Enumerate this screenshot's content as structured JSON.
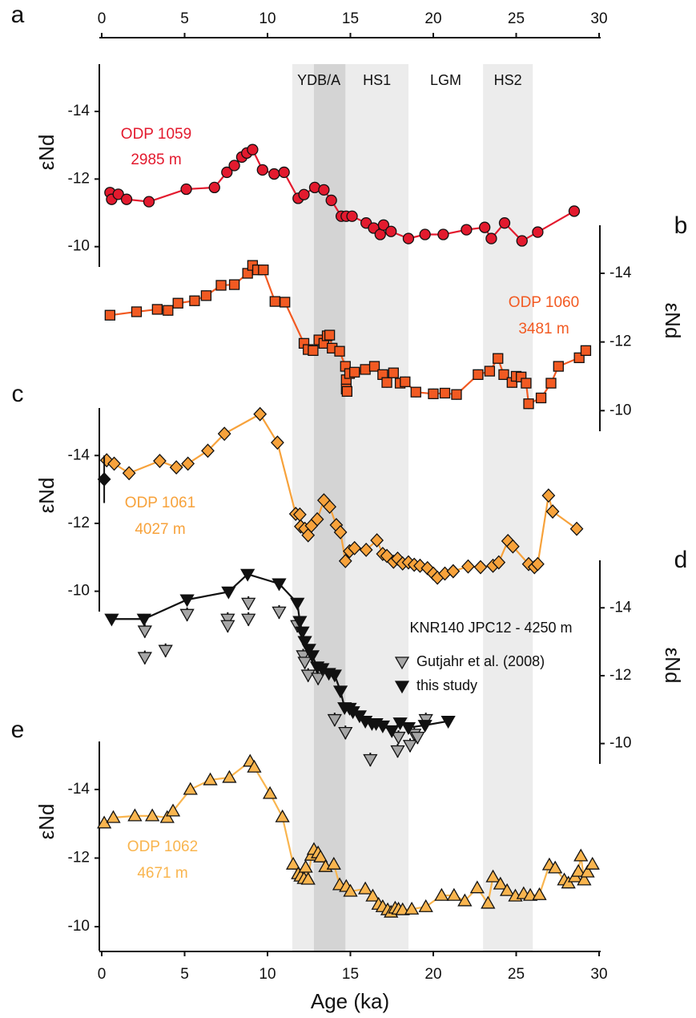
{
  "chart_data": [
    {
      "type": "line",
      "panel_label": "a",
      "ylabel": "εNd",
      "yaxis": "left",
      "ylim": [
        -9.4,
        -15.4
      ],
      "yticks": [
        -14,
        -12,
        -10
      ],
      "xlim": [
        0,
        30
      ],
      "xticks": [
        0,
        5,
        10,
        15,
        20,
        25,
        30
      ],
      "periods": [
        {
          "label": "YDB/A",
          "range": [
            11.5,
            14.7
          ],
          "shade": "#ececec"
        },
        {
          "label": "HS1",
          "range": [
            14.7,
            18.5
          ],
          "shade": "#ececec"
        },
        {
          "label": "LGM",
          "range": [
            18.5,
            23
          ],
          "shade": null
        },
        {
          "label": "HS2",
          "range": [
            23,
            26
          ],
          "shade": "#ececec"
        }
      ],
      "band": {
        "range": [
          12.8,
          14.7
        ],
        "color": "#d4d4d4"
      },
      "annotations": [
        "ODP 1059",
        "2985 m"
      ],
      "series": [
        {
          "color": "#e31a2e",
          "marker": "circle",
          "line": true,
          "error": 0.15,
          "x": [
            0.5,
            0.6,
            1.0,
            1.5,
            2.85,
            5.1,
            6.8,
            7.55,
            8.0,
            8.45,
            8.75,
            9.1,
            9.7,
            10.4,
            11.0,
            11.85,
            12.2,
            12.85,
            13.4,
            13.85,
            14.45,
            14.75,
            15.1,
            15.95,
            16.4,
            16.8,
            17.0,
            17.45,
            18.5,
            19.5,
            20.6,
            22.0,
            23.1,
            23.5,
            24.3,
            25.35,
            26.3,
            28.5
          ],
          "values": [
            -11.6,
            -11.4,
            -11.55,
            -11.4,
            -11.33,
            -11.7,
            -11.75,
            -12.2,
            -12.4,
            -12.65,
            -12.77,
            -12.87,
            -12.27,
            -12.15,
            -12.2,
            -11.43,
            -11.54,
            -11.75,
            -11.68,
            -11.37,
            -10.9,
            -10.9,
            -10.9,
            -10.7,
            -10.55,
            -10.36,
            -10.64,
            -10.45,
            -10.24,
            -10.36,
            -10.36,
            -10.5,
            -10.57,
            -10.24,
            -10.7,
            -10.17,
            -10.43,
            -11.05
          ]
        }
      ]
    },
    {
      "type": "line",
      "panel_label": "b",
      "ylabel": "εNd",
      "yaxis": "right",
      "ylim": [
        -9.4,
        -15.4
      ],
      "yticks": [
        -14,
        -12,
        -10
      ],
      "annotations": [
        "ODP 1060",
        "3481 m"
      ],
      "series": [
        {
          "color": "#f25a22",
          "marker": "square",
          "line": true,
          "error": 0.15,
          "x": [
            0.5,
            2.1,
            3.35,
            4.0,
            4.6,
            5.6,
            6.3,
            7.2,
            8.0,
            8.8,
            9.1,
            9.4,
            9.75,
            10.45,
            11.05,
            12.2,
            12.45,
            12.75,
            13.1,
            13.4,
            13.6,
            13.75,
            13.9,
            14.35,
            14.7,
            14.75,
            14.75,
            14.8,
            14.95,
            15.25,
            15.9,
            16.45,
            16.95,
            17.2,
            17.6,
            18.0,
            18.3,
            18.95,
            20.0,
            20.7,
            21.4,
            22.7,
            23.4,
            23.9,
            24.25,
            24.75,
            25.0,
            25.3,
            25.6,
            25.75,
            26.5,
            27.1,
            27.55,
            28.8,
            29.2
          ],
          "values": [
            -12.78,
            -12.88,
            -12.95,
            -12.92,
            -13.13,
            -13.2,
            -13.35,
            -13.65,
            -13.67,
            -14.0,
            -14.23,
            -14.1,
            -14.1,
            -13.18,
            -13.16,
            -11.96,
            -11.78,
            -11.75,
            -12.06,
            -11.96,
            -12.18,
            -12.2,
            -11.82,
            -11.73,
            -11.29,
            -10.9,
            -10.63,
            -10.56,
            -11.08,
            -11.12,
            -11.2,
            -11.29,
            -11.05,
            -10.82,
            -11.1,
            -10.8,
            -10.84,
            -10.54,
            -10.49,
            -10.51,
            -10.47,
            -11.05,
            -11.15,
            -11.52,
            -11.05,
            -10.82,
            -11.0,
            -10.98,
            -10.8,
            -10.2,
            -10.37,
            -10.8,
            -11.29,
            -11.54,
            -11.75
          ]
        }
      ]
    },
    {
      "type": "line",
      "panel_label": "c",
      "ylabel": "εNd",
      "yaxis": "left",
      "ylim": [
        -9.4,
        -15.4
      ],
      "yticks": [
        -14,
        -12,
        -10
      ],
      "annotations": [
        "ODP 1061",
        "4027 m"
      ],
      "series": [
        {
          "color": "#f7a23b",
          "marker": "diamond",
          "line": true,
          "error": 0.15,
          "x": [
            0.3,
            0.75,
            1.65,
            3.5,
            4.5,
            5.2,
            6.4,
            7.4,
            9.55,
            10.6,
            11.7,
            11.95,
            12.0,
            12.25,
            12.45,
            12.65,
            13.0,
            13.4,
            13.75,
            14.15,
            14.4,
            14.7,
            14.95,
            15.25,
            15.95,
            16.6,
            16.95,
            17.2,
            17.6,
            17.85,
            18.15,
            18.5,
            18.85,
            19.2,
            19.65,
            20.0,
            20.25,
            20.7,
            21.2,
            22.1,
            22.85,
            23.6,
            23.95,
            24.5,
            24.8,
            25.75,
            26.1,
            26.3,
            26.95,
            27.2,
            28.65
          ],
          "values": [
            -13.86,
            -13.76,
            -13.48,
            -13.84,
            -13.65,
            -13.76,
            -14.14,
            -14.64,
            -15.22,
            -14.38,
            -12.28,
            -12.26,
            -11.91,
            -11.84,
            -11.65,
            -11.93,
            -12.12,
            -12.68,
            -12.49,
            -11.95,
            -11.74,
            -10.89,
            -11.18,
            -11.27,
            -11.22,
            -11.5,
            -11.1,
            -11.04,
            -10.87,
            -10.96,
            -10.82,
            -10.85,
            -10.78,
            -10.75,
            -10.68,
            -10.52,
            -10.4,
            -10.52,
            -10.59,
            -10.73,
            -10.71,
            -10.75,
            -10.85,
            -11.48,
            -11.32,
            -10.8,
            -10.71,
            -10.8,
            -12.82,
            -12.35,
            -11.84
          ]
        },
        {
          "color": "#111111",
          "marker": "diamond",
          "line": false,
          "error": 0.7,
          "x": [
            0.15
          ],
          "values": [
            -13.3
          ]
        }
      ]
    },
    {
      "type": "line",
      "panel_label": "d",
      "ylabel": "εNd",
      "yaxis": "right",
      "ylim": [
        -9.4,
        -15.4
      ],
      "yticks": [
        -14,
        -12,
        -10
      ],
      "title": "KNR140 JPC12 - 4250 m",
      "series": [
        {
          "name": "Gutjahr et al. (2008)",
          "color": "#a6a6a6",
          "marker": "triangle-down",
          "line": false,
          "error": 0.2,
          "x": [
            2.6,
            2.6,
            3.85,
            5.15,
            7.6,
            7.6,
            8.85,
            8.85,
            10.7,
            11.8,
            12.15,
            12.25,
            12.45,
            13.05,
            14.05,
            14.7,
            16.2,
            17.85,
            17.9,
            18.6,
            18.85,
            19.05,
            19.55
          ],
          "values": [
            -13.32,
            -12.54,
            -12.75,
            -13.81,
            -13.67,
            -13.48,
            -14.14,
            -13.67,
            -13.88,
            -13.48,
            -12.59,
            -12.4,
            -12.02,
            -11.93,
            -10.71,
            -10.33,
            -9.53,
            -9.79,
            -10.19,
            -9.95,
            -10.28,
            -10.19,
            -10.71
          ]
        },
        {
          "name": "this study",
          "color": "#111111",
          "marker": "triangle-down",
          "line": true,
          "error": 0.15,
          "x": [
            0.6,
            2.55,
            5.15,
            7.65,
            8.8,
            10.7,
            11.8,
            11.95,
            12.1,
            12.25,
            12.5,
            12.7,
            13.0,
            13.3,
            13.7,
            14.05,
            14.4,
            14.65,
            14.95,
            15.15,
            15.55,
            15.9,
            16.3,
            16.55,
            16.95,
            17.5,
            18.0,
            18.5,
            19.5,
            20.9
          ],
          "values": [
            -13.67,
            -13.67,
            -14.24,
            -14.47,
            -14.99,
            -14.71,
            -14.14,
            -13.6,
            -13.29,
            -13.01,
            -12.78,
            -12.59,
            -12.26,
            -12.21,
            -12.07,
            -12.02,
            -11.55,
            -11.06,
            -11.04,
            -10.94,
            -10.82,
            -10.66,
            -10.59,
            -10.59,
            -10.52,
            -10.38,
            -10.61,
            -10.47,
            -10.54,
            -10.66
          ]
        }
      ]
    },
    {
      "type": "line",
      "panel_label": "e",
      "ylabel": "εNd",
      "yaxis": "left",
      "ylim": [
        -9.3,
        -15.4
      ],
      "yticks": [
        -14,
        -12,
        -10
      ],
      "xlim": [
        0,
        30
      ],
      "xticks": [
        0,
        5,
        10,
        15,
        20,
        25,
        30
      ],
      "xlabel": "Age (ka)",
      "annotations": [
        "ODP 1062",
        "4671 m"
      ],
      "series": [
        {
          "color": "#f9b54f",
          "marker": "triangle-up",
          "line": true,
          "error": 0.15,
          "x": [
            0.15,
            0.7,
            2.0,
            3.05,
            3.95,
            4.3,
            5.35,
            6.55,
            7.7,
            8.95,
            9.2,
            10.15,
            10.9,
            11.55,
            11.85,
            12.0,
            12.2,
            12.3,
            12.45,
            12.65,
            12.8,
            13.05,
            13.2,
            13.5,
            14.0,
            14.35,
            14.75,
            15.0,
            15.9,
            16.35,
            16.7,
            16.95,
            17.25,
            17.45,
            17.7,
            17.9,
            18.15,
            18.7,
            19.55,
            20.5,
            21.25,
            21.9,
            22.65,
            23.3,
            23.6,
            24.05,
            24.45,
            24.95,
            25.45,
            25.85,
            26.4,
            27.0,
            27.35,
            27.9,
            28.15,
            28.55,
            28.75,
            28.9,
            29.1,
            29.3,
            29.6
          ],
          "values": [
            -13.02,
            -13.18,
            -13.23,
            -13.23,
            -13.18,
            -13.37,
            -14.0,
            -14.28,
            -14.35,
            -14.82,
            -14.65,
            -13.88,
            -13.2,
            -11.82,
            -11.54,
            -11.47,
            -11.4,
            -11.73,
            -11.38,
            -12.08,
            -12.25,
            -12.15,
            -12.03,
            -11.75,
            -11.82,
            -11.22,
            -11.17,
            -11.03,
            -11.1,
            -10.89,
            -10.65,
            -10.58,
            -10.49,
            -10.42,
            -10.54,
            -10.51,
            -10.49,
            -10.51,
            -10.58,
            -10.91,
            -10.91,
            -10.75,
            -11.13,
            -10.68,
            -11.45,
            -11.24,
            -11.05,
            -10.89,
            -10.96,
            -10.91,
            -10.93,
            -11.8,
            -11.71,
            -11.36,
            -11.27,
            -11.45,
            -11.61,
            -12.06,
            -11.36,
            -11.59,
            -11.82
          ]
        }
      ]
    }
  ]
}
